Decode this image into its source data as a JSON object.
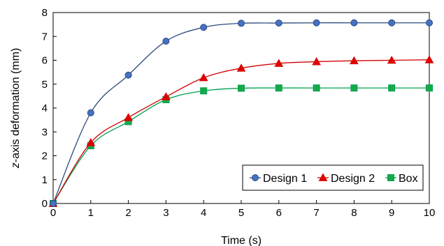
{
  "chart_data": {
    "type": "line",
    "xlabel": "Time (s)",
    "ylabel_italic": "z",
    "ylabel_rest": "-axis deformation (mm)",
    "xlim": [
      0,
      10
    ],
    "ylim": [
      0,
      8
    ],
    "xticks": [
      0,
      1,
      2,
      3,
      4,
      5,
      6,
      7,
      8,
      9,
      10
    ],
    "yticks": [
      0,
      1,
      2,
      3,
      4,
      5,
      6,
      7,
      8
    ],
    "grid": false,
    "legend_position": "bottom-right",
    "x": [
      0,
      1,
      2,
      3,
      4,
      5,
      6,
      7,
      8,
      9,
      10
    ],
    "series": [
      {
        "name": "Design 1",
        "marker": "circle",
        "color": "#2e4a7d",
        "fill": "#4472c4",
        "values": [
          0,
          3.8,
          5.38,
          6.8,
          7.38,
          7.55,
          7.56,
          7.57,
          7.57,
          7.57,
          7.57
        ]
      },
      {
        "name": "Design 2",
        "marker": "triangle",
        "color": "#d40000",
        "fill": "#e00000",
        "values": [
          0,
          2.55,
          3.6,
          4.47,
          5.27,
          5.67,
          5.87,
          5.94,
          5.98,
          6.0,
          6.02
        ]
      },
      {
        "name": "Box",
        "marker": "square",
        "color": "#00a050",
        "fill": "#18a84b",
        "values": [
          0,
          2.42,
          3.43,
          4.35,
          4.72,
          4.83,
          4.84,
          4.84,
          4.84,
          4.84,
          4.84
        ]
      }
    ]
  }
}
